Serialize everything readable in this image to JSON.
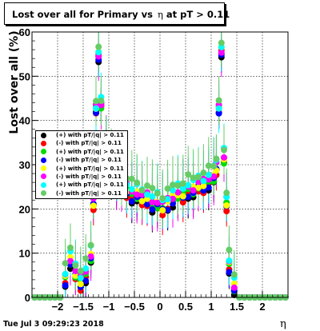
{
  "title": {
    "prefix": "Lost over all for Primary vs",
    "eta": "η",
    "suffix": "at pT > 0.11"
  },
  "footer": {
    "datestamp": "Tue Jul  3 09:29:23 2018"
  },
  "chart_data": {
    "type": "scatter",
    "title": "Lost over all for Primary vs η at pT > 0.11",
    "xlabel": "η",
    "ylabel": "Lost over all (%)",
    "xlim": [
      -2.5,
      2.5
    ],
    "ylim": [
      0,
      60
    ],
    "x_ticks": [
      -2,
      -1.5,
      -1,
      -0.5,
      0,
      0.5,
      1,
      1.5,
      2
    ],
    "x_tick_labels": [
      "−2",
      "−1.5",
      "−1",
      "−0.5",
      "0",
      "0.5",
      "1",
      "1.5",
      "2"
    ],
    "y_ticks": [
      0,
      10,
      20,
      30,
      40,
      50,
      60
    ],
    "grid": true,
    "legend_position": "left-middle",
    "series": [
      {
        "name": "(+) with pT/|q| > 0.11",
        "color": "#000000",
        "y_shift": 0.0
      },
      {
        "name": "(-) with pT/|q| > 0.11",
        "color": "#ff0000",
        "y_shift": 0.3
      },
      {
        "name": "(+) with pT/|q| > 0.11",
        "color": "#00dd00",
        "y_shift": 1.0
      },
      {
        "name": "(-) with pT/|q| > 0.11",
        "color": "#0000ff",
        "y_shift": 0.5
      },
      {
        "name": "(+) with pT/|q| > 0.11",
        "color": "#ffff00",
        "y_shift": 1.5
      },
      {
        "name": "(-) with pT/|q| > 0.11",
        "color": "#ff00ff",
        "y_shift": 2.0
      },
      {
        "name": "(+) with pT/|q| > 0.11",
        "color": "#00ffff",
        "y_shift": 3.0
      },
      {
        "name": "(-) with pT/|q| > 0.11",
        "color": "#66cc66",
        "y_shift": 4.0
      }
    ],
    "x": [
      -2.45,
      -2.35,
      -2.25,
      -2.15,
      -2.05,
      -1.95,
      -1.85,
      -1.75,
      -1.65,
      -1.55,
      -1.45,
      -1.35,
      -1.3,
      -1.25,
      -1.2,
      -1.15,
      -1.05,
      -0.95,
      -0.85,
      -0.75,
      -0.65,
      -0.55,
      -0.45,
      -0.35,
      -0.25,
      -0.15,
      -0.05,
      0.05,
      0.15,
      0.25,
      0.35,
      0.45,
      0.55,
      0.65,
      0.75,
      0.85,
      0.95,
      1.05,
      1.1,
      1.15,
      1.2,
      1.25,
      1.3,
      1.35,
      1.45,
      1.55,
      1.65,
      1.75,
      1.85,
      1.95,
      2.05,
      2.15,
      2.25,
      2.35,
      2.45
    ],
    "base_values": [
      0,
      0,
      0,
      0,
      0,
      0,
      3,
      7,
      4,
      2,
      4,
      8,
      20,
      42,
      54,
      43,
      33,
      27,
      25,
      24,
      23,
      22,
      22,
      21,
      21,
      20,
      20,
      19,
      20,
      21,
      22,
      22,
      23,
      23,
      24,
      24,
      25,
      26,
      28,
      42,
      55,
      30,
      20,
      6,
      1,
      0,
      0,
      0,
      0,
      0,
      0,
      0,
      0,
      0,
      0
    ]
  },
  "colors": {
    "frame": "#000000",
    "grid": "#000000",
    "background": "#ffffff"
  }
}
